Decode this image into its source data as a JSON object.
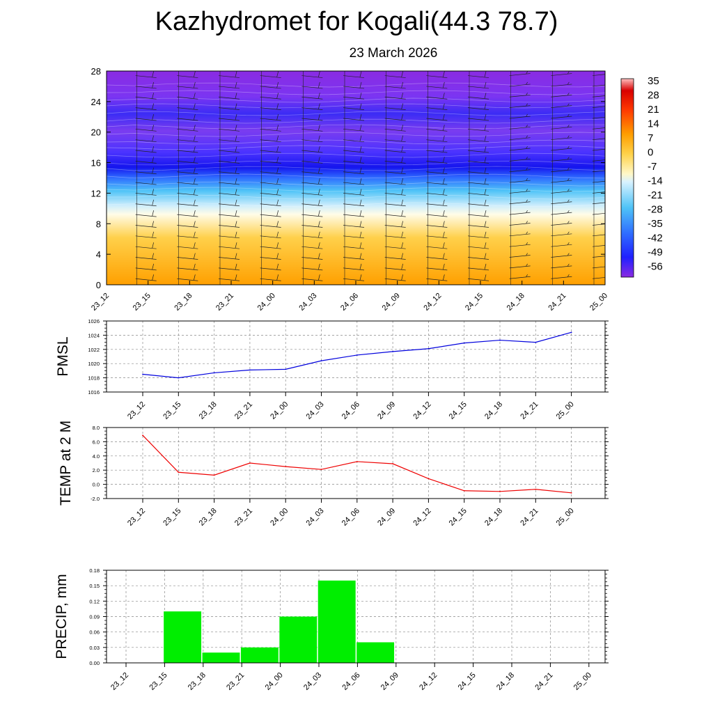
{
  "header": {
    "title": "Kazhydromet for Kogali(44.3 78.7)",
    "subtitle": "23 March 2026"
  },
  "chart_data": [
    {
      "type": "heatmap",
      "title": "",
      "x_labels": [
        "23_12",
        "23_15",
        "23_18",
        "23_21",
        "24_00",
        "24_03",
        "24_06",
        "24_09",
        "24_12",
        "24_15",
        "24_18",
        "24_21",
        "25_00"
      ],
      "y_ticks": [
        "0",
        "4",
        "8",
        "12",
        "16",
        "20",
        "24",
        "28"
      ],
      "ylim": [
        0,
        28
      ],
      "colorbar_labels": [
        "35",
        "28",
        "21",
        "14",
        "7",
        "0",
        "-7",
        "-14",
        "-21",
        "-28",
        "-35",
        "-42",
        "-49",
        "-56"
      ],
      "colors": {
        "warm": "#ffa200",
        "neutral": "#fffbe0",
        "cool": "#5ac8fa",
        "cold": "#1a1aff",
        "upper": "#8a2be2",
        "hot": "#e00000"
      },
      "notes": "temperature cross-section with wind barbs"
    },
    {
      "type": "line",
      "ylabel": "PMSL",
      "categories": [
        "23_12",
        "23_15",
        "23_18",
        "23_21",
        "24_00",
        "24_03",
        "24_06",
        "24_09",
        "24_12",
        "24_15",
        "24_18",
        "24_21",
        "25_00"
      ],
      "values": [
        1018.5,
        1018.0,
        1018.7,
        1019.1,
        1019.2,
        1020.4,
        1021.2,
        1021.7,
        1022.1,
        1022.9,
        1023.3,
        1023.0,
        1024.4
      ],
      "ylim": [
        1016,
        1026
      ],
      "y_ticks": [
        "1016",
        "1018",
        "1020",
        "1022",
        "1024",
        "1026"
      ],
      "color": "#0000dd",
      "grid": true
    },
    {
      "type": "line",
      "ylabel": "TEMP at 2 M",
      "categories": [
        "23_12",
        "23_15",
        "23_18",
        "23_21",
        "24_00",
        "24_03",
        "24_06",
        "24_09",
        "24_12",
        "24_15",
        "24_18",
        "24_21",
        "25_00"
      ],
      "values": [
        6.9,
        1.7,
        1.3,
        3.0,
        2.5,
        2.1,
        3.2,
        2.9,
        0.8,
        -0.9,
        -1.0,
        -0.7,
        -1.2
      ],
      "ylim": [
        -2,
        8
      ],
      "y_ticks": [
        "-2.0",
        "0.0",
        "2.0",
        "4.0",
        "6.0",
        "8.0"
      ],
      "color": "#ee0000",
      "grid": true
    },
    {
      "type": "bar",
      "ylabel": "PRECIP, mm",
      "categories": [
        "23_12",
        "23_15",
        "23_18",
        "23_21",
        "24_00",
        "24_03",
        "24_06",
        "24_09",
        "24_12",
        "24_15",
        "24_18",
        "24_21",
        "25_00"
      ],
      "values": [
        0,
        0.1,
        0.02,
        0.03,
        0.09,
        0.16,
        0.04,
        0,
        0,
        0,
        0,
        0,
        0
      ],
      "ylim": [
        0,
        0.18
      ],
      "y_ticks": [
        "0.00",
        "0.03",
        "0.06",
        "0.09",
        "0.12",
        "0.15",
        "0.18"
      ],
      "color": "#00ee00",
      "grid": true
    }
  ]
}
